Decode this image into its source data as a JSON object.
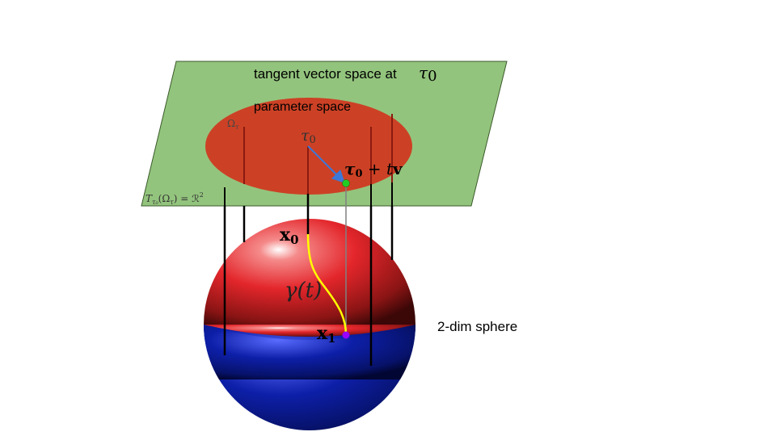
{
  "labels": {
    "tangent_space": "tangent vector space at",
    "tau0_symbol": "τ",
    "tau0_sub": "0",
    "parameter_space": "parameter space",
    "omega_tau": "Ω",
    "omega_tau_sub": "τ",
    "tau0_point": "τ",
    "tau0_point_sub": "0",
    "tau0_plus_tv_tau": "τ",
    "tau0_plus_tv_sub": "0",
    "tau0_plus_tv_rest": " + t",
    "tau0_plus_tv_v": "v",
    "tangent_eq_T": "T",
    "tangent_eq_sub": "τ₀",
    "tangent_eq_rest": "(Ω",
    "tangent_eq_rest_sub": "τ",
    "tangent_eq_tail": ") = ℛ",
    "tangent_eq_sup": "2",
    "x0": "x",
    "x0_sub": "0",
    "gamma": "γ(t)",
    "x1": "x",
    "x1_sub": "1",
    "sphere": "2-dim sphere"
  },
  "colors": {
    "plane_fill": "#93c47d",
    "disk_fill": "#cc4125",
    "sphere_red": "#e3262b",
    "sphere_blue": "#0a1a9a",
    "curve": "#ffff00",
    "arrow": "#3c78d8",
    "point_tau": "#22cc22",
    "point_x1": "#9900ff",
    "projection_line": "#808080"
  },
  "icons": {
    "tau_point_marker": "green-dot",
    "x1_marker": "purple-dot"
  }
}
